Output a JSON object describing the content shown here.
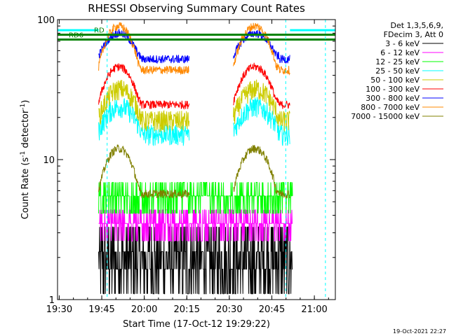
{
  "chart_data": {
    "type": "line",
    "title": "RHESSI Observing Summary Count Rates",
    "xlabel": "Start Time (17-Oct-12 19:29:22)",
    "ylabel_parts": [
      "Count Rate (s",
      "-1",
      " detector",
      "-1",
      ")"
    ],
    "yscale": "log",
    "ylim": [
      1,
      100
    ],
    "xlim_minutes": [
      0,
      98
    ],
    "x_ticks": [
      {
        "label": "19:30",
        "t": 0.6
      },
      {
        "label": "19:45",
        "t": 15.6
      },
      {
        "label": "20:00",
        "t": 30.6
      },
      {
        "label": "20:15",
        "t": 45.6
      },
      {
        "label": "20:30",
        "t": 60.6
      },
      {
        "label": "20:45",
        "t": 75.6
      },
      {
        "label": "21:00",
        "t": 90.6
      }
    ],
    "y_ticks": [
      {
        "label": "1",
        "v": 1
      },
      {
        "label": "10",
        "v": 10
      },
      {
        "label": "100",
        "v": 100
      }
    ],
    "legend_header": [
      "Det 1,3,5,6,9,",
      "FDecim 3, Att 0"
    ],
    "series": [
      {
        "name": "3 - 6 keV",
        "color": "#000000",
        "kind": "noisy_low"
      },
      {
        "name": "6 - 12 keV",
        "color": "#ff00ff",
        "kind": "band",
        "level": 3.5
      },
      {
        "name": "12 - 25 keV",
        "color": "#00ff00",
        "kind": "band",
        "level": 5.5
      },
      {
        "name": "25 - 50 keV",
        "color": "#00ffff",
        "kind": "day",
        "level": 16,
        "hump": 8
      },
      {
        "name": "50 - 100 keV",
        "color": "#cccc00",
        "kind": "day",
        "level": 20,
        "hump": 12
      },
      {
        "name": "100 - 300 keV",
        "color": "#ff0000",
        "kind": "orbit",
        "peak": 46,
        "low": 26
      },
      {
        "name": "300 - 800 keV",
        "color": "#0000ff",
        "kind": "orbit",
        "peak": 80,
        "low": 55
      },
      {
        "name": "800 - 7000 keV",
        "color": "#ff8800",
        "kind": "orbit",
        "peak": 90,
        "low": 46
      },
      {
        "name": "7000 - 15000 keV",
        "color": "#808000",
        "kind": "orbit",
        "peak": 12,
        "low": 6
      }
    ],
    "night_intervals": [
      {
        "start": 14.5,
        "end": 29.5
      },
      {
        "start": 46.5,
        "end": 62
      },
      {
        "start": 78,
        "end": 82
      }
    ],
    "attenuator_markers": [
      {
        "label": "RD6",
        "level": 72,
        "color": "#008000"
      },
      {
        "label": "RD",
        "level": 78,
        "color": "#008000"
      }
    ],
    "saa_flag_level": 84,
    "saa_color": "#00ffff",
    "dashed_markers_t": [
      17.5,
      80.5,
      94.5
    ],
    "timestamp": "19-Oct-2021 22:27"
  },
  "colors": {
    "axis": "#000000",
    "background": "#ffffff"
  }
}
